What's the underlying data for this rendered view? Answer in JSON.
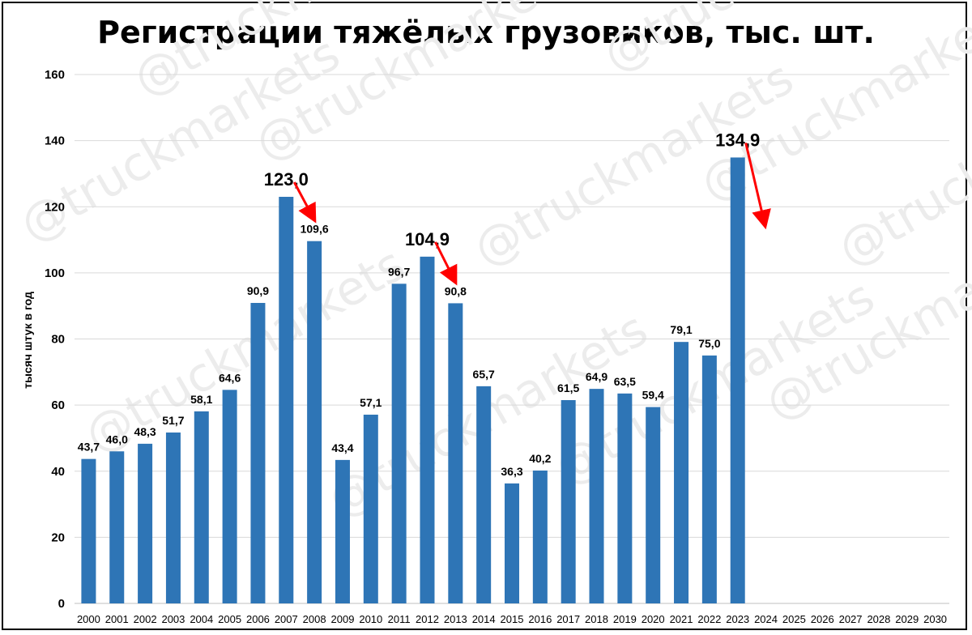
{
  "chart_data": {
    "type": "bar",
    "title": "Регистрации тяжёлых грузовиков, тыс. шт.",
    "ylabel": "тысяч штук в год",
    "xlabel": "",
    "ylim": [
      0,
      160
    ],
    "yticks": [
      0,
      20,
      40,
      60,
      80,
      100,
      120,
      140,
      160
    ],
    "grid": true,
    "bar_color": "#2e75b6",
    "categories": [
      "2000",
      "2001",
      "2002",
      "2003",
      "2004",
      "2005",
      "2006",
      "2007",
      "2008",
      "2009",
      "2010",
      "2011",
      "2012",
      "2013",
      "2014",
      "2015",
      "2016",
      "2017",
      "2018",
      "2019",
      "2020",
      "2021",
      "2022",
      "2023",
      "2024",
      "2025",
      "2026",
      "2027",
      "2028",
      "2029",
      "2030"
    ],
    "values": [
      43.7,
      46.0,
      48.3,
      51.7,
      58.1,
      64.6,
      90.9,
      123.0,
      109.6,
      43.4,
      57.1,
      96.7,
      104.9,
      90.8,
      65.7,
      36.3,
      40.2,
      61.5,
      64.9,
      63.5,
      59.4,
      79.1,
      75.0,
      134.9,
      null,
      null,
      null,
      null,
      null,
      null,
      null
    ],
    "value_labels": [
      "43,7",
      "46,0",
      "48,3",
      "51,7",
      "58,1",
      "64,6",
      "90,9",
      "123,0",
      "109,6",
      "43,4",
      "57,1",
      "96,7",
      "104,9",
      "90,8",
      "65,7",
      "36,3",
      "40,2",
      "61,5",
      "64,9",
      "63,5",
      "59,4",
      "79,1",
      "75,0",
      "134,9",
      "",
      "",
      "",
      "",
      "",
      "",
      ""
    ],
    "highlighted_labels": [
      "2007",
      "2012",
      "2023"
    ],
    "annotations": [
      {
        "type": "arrow",
        "color": "#ff0000",
        "from_year": "2007",
        "to_year": "2008"
      },
      {
        "type": "arrow",
        "color": "#ff0000",
        "from_year": "2012",
        "to_year": "2013"
      },
      {
        "type": "arrow",
        "color": "#ff0000",
        "from_year": "2023",
        "to_year": "2024"
      }
    ],
    "watermark": "@truckmarkets"
  }
}
